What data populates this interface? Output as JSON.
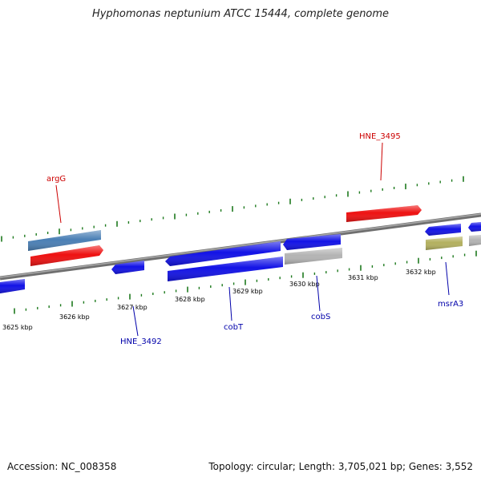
{
  "title": "Hyphomonas neptunium ATCC 15444, complete genome",
  "footer": {
    "accession": "Accession: NC_008358",
    "topology": "Topology: circular; Length: 3,705,021 bp; Genes: 3,552"
  },
  "colors": {
    "backbone": "#808080",
    "tick": "#1e7a1e",
    "ruler_label": "#222222",
    "forward_label": "#cc0000",
    "reverse_label": "#0000aa",
    "gene_blue": "#1212e6",
    "gene_red": "#ee1111",
    "gene_steel": "#4a7fb5",
    "gene_gray": "#b4b4b4",
    "gene_olive": "#b3b05e"
  },
  "ruler": {
    "labels": [
      "3625 kbp",
      "3626 kbp",
      "3627 kbp",
      "3628 kbp",
      "3629 kbp",
      "3630 kbp",
      "3631 kbp",
      "3632 kbp"
    ]
  },
  "features": {
    "forward_labels": [
      {
        "id": "argG",
        "text": "argG"
      },
      {
        "id": "HNE_3495",
        "text": "HNE_3495"
      }
    ],
    "reverse_labels": [
      {
        "id": "HNE_3492",
        "text": "HNE_3492"
      },
      {
        "id": "cobT",
        "text": "cobT"
      },
      {
        "id": "cobS",
        "text": "cobS"
      },
      {
        "id": "msrA3",
        "text": "msrA3"
      }
    ]
  }
}
